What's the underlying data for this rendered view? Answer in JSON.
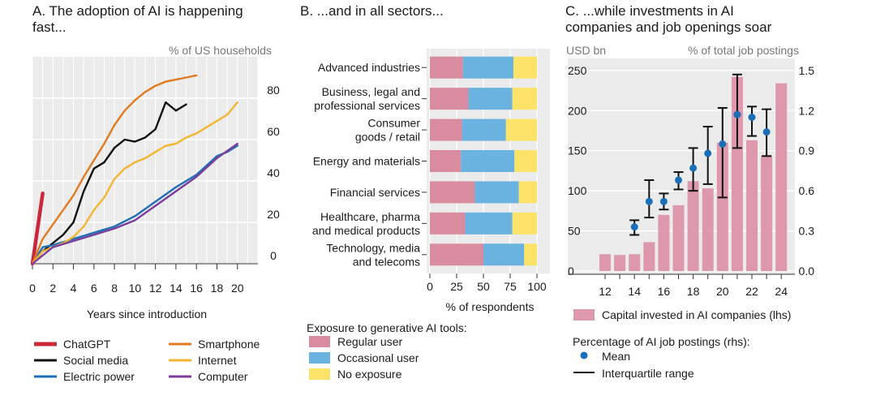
{
  "panel_a": {
    "title_line1": "A. The adoption of AI is happening",
    "title_line2": "fast...",
    "unit_label": "% of US households"
  },
  "panel_b": {
    "title": "B. ...and in all sectors...",
    "legend_title": "Exposure to generative AI tools:"
  },
  "panel_c": {
    "title_line1": "C. ...while investments in AI",
    "title_line2": "companies and job openings soar",
    "left_unit": "USD bn",
    "right_unit": "% of total job postings",
    "legend_bar": "Capital invested in AI companies (lhs)",
    "legend_title": "Percentage of AI job postings (rhs):",
    "legend_mean": "Mean",
    "legend_iqr": "Interquartile range"
  },
  "colors": {
    "chatgpt": "#c8283c",
    "social": "#111111",
    "electric": "#1f6fb5",
    "smartphone": "#e07a20",
    "internet": "#f2b630",
    "computer": "#7b3d9c",
    "regular": "#d98ca0",
    "occasional": "#6ab2e0",
    "none": "#fbe36a",
    "invest": "#dd98ac",
    "mean": "#1a6fb8",
    "panelbg": "#ebebeb"
  },
  "chart_data": [
    {
      "type": "line",
      "title": "A. The adoption of AI is happening fast...",
      "xlabel": "Years since introduction",
      "ylabel": "% of US households",
      "xlim": [
        0,
        22
      ],
      "ylim": [
        0,
        100
      ],
      "xticks": [
        "0",
        "2",
        "4",
        "6",
        "8",
        "10",
        "12",
        "14",
        "16",
        "18",
        "20"
      ],
      "yticks": [
        "0",
        "20",
        "40",
        "60",
        "80"
      ],
      "grid": true,
      "series": [
        {
          "name": "ChatGPT",
          "key": "chatgpt",
          "x": [
            0,
            1
          ],
          "y": [
            0,
            34
          ]
        },
        {
          "name": "Social media",
          "key": "social",
          "x": [
            0,
            1,
            2,
            3,
            4,
            5,
            6,
            7,
            8,
            9,
            10,
            11,
            12,
            13,
            14,
            15
          ],
          "y": [
            0,
            6,
            10,
            14,
            20,
            35,
            46,
            49,
            56,
            60,
            59,
            61,
            65,
            78,
            74,
            77
          ]
        },
        {
          "name": "Electric power",
          "key": "electric",
          "x": [
            0,
            1,
            2,
            4,
            6,
            8,
            10,
            12,
            14,
            16,
            18,
            19,
            20
          ],
          "y": [
            0,
            8,
            9,
            12,
            15,
            18,
            23,
            30,
            37,
            43,
            52,
            54,
            57
          ]
        },
        {
          "name": "Smartphone",
          "key": "smartphone",
          "x": [
            0,
            1,
            2,
            3,
            4,
            5,
            6,
            7,
            8,
            9,
            10,
            11,
            12,
            13,
            14,
            15,
            16
          ],
          "y": [
            0,
            12,
            19,
            26,
            33,
            42,
            50,
            58,
            67,
            74,
            79,
            83,
            86,
            88,
            89,
            90,
            91
          ]
        },
        {
          "name": "Internet",
          "key": "internet",
          "x": [
            0,
            1,
            2,
            3,
            4,
            5,
            6,
            7,
            8,
            9,
            10,
            11,
            12,
            13,
            14,
            15,
            16,
            17,
            18,
            19,
            20
          ],
          "y": [
            0,
            6,
            8,
            10,
            13,
            18,
            26,
            32,
            41,
            46,
            49,
            51,
            54,
            57,
            58,
            61,
            63,
            66,
            69,
            72,
            78
          ]
        },
        {
          "name": "Computer",
          "key": "computer",
          "x": [
            0,
            2,
            4,
            6,
            8,
            10,
            12,
            14,
            16,
            18,
            20
          ],
          "y": [
            0,
            8,
            11,
            14,
            17,
            21,
            28,
            35,
            42,
            51,
            58
          ]
        }
      ]
    },
    {
      "type": "bar",
      "orientation": "horizontal",
      "stacked": true,
      "title": "B. ...and in all sectors...",
      "xlabel": "% of respondents",
      "xlim": [
        0,
        100
      ],
      "xticks": [
        "0",
        "25",
        "50",
        "75",
        "100"
      ],
      "categories": [
        "Advanced industries",
        "Business, legal and professional services",
        "Consumer goods / retail",
        "Energy and materials",
        "Financial services",
        "Healthcare, pharma and medical products",
        "Technology, media and telecoms"
      ],
      "category_lines": [
        [
          "Advanced industries"
        ],
        [
          "Business, legal and",
          "professional services"
        ],
        [
          "Consumer",
          "goods / retail"
        ],
        [
          "Energy and materials"
        ],
        [
          "Financial services"
        ],
        [
          "Healthcare, pharma",
          "and medical products"
        ],
        [
          "Technology, media",
          "and telecoms"
        ]
      ],
      "series": [
        {
          "name": "Regular user",
          "key": "regular",
          "values": [
            31,
            36,
            30,
            29,
            42,
            33,
            50
          ]
        },
        {
          "name": "Occasional user",
          "key": "occasional",
          "values": [
            47,
            41,
            41,
            50,
            41,
            44,
            38
          ]
        },
        {
          "name": "No exposure",
          "key": "none",
          "values": [
            22,
            23,
            29,
            21,
            17,
            23,
            12
          ]
        }
      ]
    },
    {
      "type": "bar",
      "title": "C. ...while investments in AI companies and job openings soar",
      "ylabel": "USD bn",
      "ylabel_right": "% of total job postings",
      "categories": [
        "12",
        "13",
        "14",
        "15",
        "16",
        "17",
        "18",
        "19",
        "20",
        "21",
        "22",
        "23",
        "24"
      ],
      "xticks": [
        "12",
        "14",
        "16",
        "18",
        "20",
        "22",
        "24"
      ],
      "ylim": [
        0,
        265
      ],
      "yticks": [
        "0",
        "50",
        "100",
        "150",
        "200",
        "250"
      ],
      "ylim_right": [
        0,
        1.59
      ],
      "yticks_right": [
        "0.0",
        "0.3",
        "0.6",
        "0.9",
        "1.2",
        "1.5"
      ],
      "series": [
        {
          "name": "Capital invested in AI companies (lhs)",
          "key": "invest",
          "type": "bar",
          "axis": "left",
          "values": [
            21,
            20,
            21,
            36,
            70,
            82,
            112,
            103,
            160,
            242,
            163,
            143,
            234
          ]
        },
        {
          "name": "Mean",
          "key": "mean",
          "type": "scatter",
          "axis": "right",
          "x": [
            "14",
            "15",
            "16",
            "17",
            "18",
            "19",
            "20",
            "21",
            "22",
            "23"
          ],
          "values": [
            0.33,
            0.52,
            0.52,
            0.68,
            0.77,
            0.88,
            0.95,
            1.17,
            1.15,
            1.04
          ]
        },
        {
          "name": "Interquartile range",
          "key": "iqr",
          "type": "errorbar",
          "axis": "right",
          "x": [
            "14",
            "15",
            "16",
            "17",
            "18",
            "19",
            "20",
            "21",
            "22",
            "23"
          ],
          "low": [
            0.27,
            0.4,
            0.46,
            0.61,
            0.6,
            0.65,
            0.55,
            0.92,
            1.01,
            0.86
          ],
          "high": [
            0.38,
            0.68,
            0.58,
            0.74,
            0.92,
            1.08,
            1.22,
            1.47,
            1.23,
            1.21
          ]
        }
      ]
    }
  ]
}
